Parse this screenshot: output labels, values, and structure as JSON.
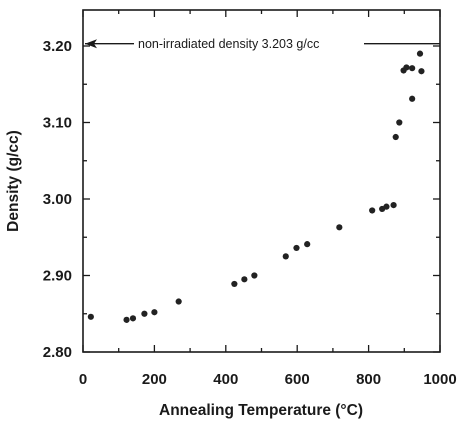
{
  "chart_data": {
    "type": "scatter",
    "xlabel": "Annealing Temperature (°C)",
    "ylabel": "Density (g/cc)",
    "xlim": [
      0,
      1000
    ],
    "ylim": [
      2.8,
      3.25
    ],
    "xticks": [
      0,
      200,
      400,
      600,
      800,
      1000
    ],
    "xtick_labels": [
      "0",
      "200",
      "400",
      "600",
      "800",
      "1000"
    ],
    "yticks": [
      2.8,
      2.9,
      3.0,
      3.1,
      3.2
    ],
    "ytick_labels": [
      "2.80",
      "2.90",
      "3.00",
      "3.10",
      "3.20"
    ],
    "grid": false,
    "reference_line": {
      "y": 3.203,
      "label": "non-irradiated density 3.203 g/cc",
      "arrow": "left"
    },
    "series": [
      {
        "points": [
          [
            22,
            2.846
          ],
          [
            122,
            2.842
          ],
          [
            140,
            2.844
          ],
          [
            172,
            2.85
          ],
          [
            200,
            2.852
          ],
          [
            268,
            2.866
          ],
          [
            424,
            2.889
          ],
          [
            452,
            2.895
          ],
          [
            480,
            2.9
          ],
          [
            568,
            2.925
          ],
          [
            598,
            2.936
          ],
          [
            628,
            2.941
          ],
          [
            718,
            2.963
          ],
          [
            810,
            2.985
          ],
          [
            838,
            2.987
          ],
          [
            850,
            2.99
          ],
          [
            870,
            2.992
          ],
          [
            876,
            3.081
          ],
          [
            886,
            3.1
          ],
          [
            898,
            3.168
          ],
          [
            906,
            3.172
          ],
          [
            922,
            3.171
          ],
          [
            922,
            3.131
          ],
          [
            944,
            3.19
          ],
          [
            948,
            3.167
          ]
        ]
      }
    ]
  }
}
